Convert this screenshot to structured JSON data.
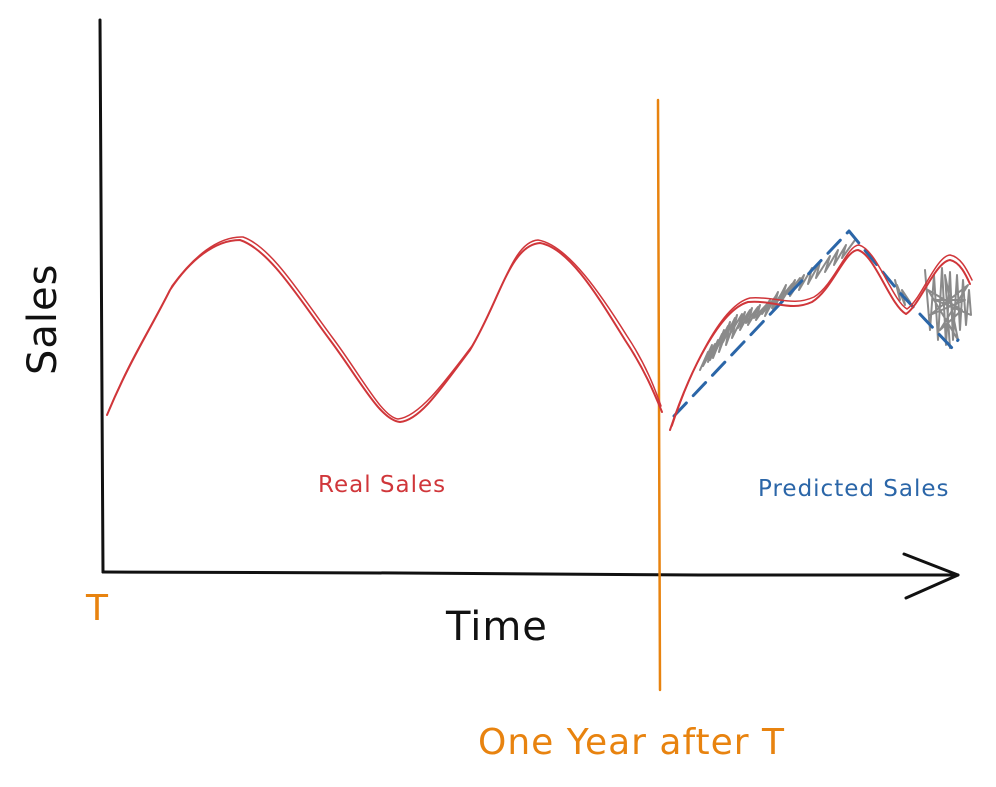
{
  "labels": {
    "y_axis": "Sales",
    "x_axis": "Time",
    "origin": "T",
    "marker": "One Year after T",
    "real_series": "Real Sales",
    "predicted_series": "Predicted Sales"
  },
  "colors": {
    "axes": "#111111",
    "real": "#d0363a",
    "predicted": "#2b66a8",
    "marker": "#e8830f",
    "noise": "#8a8a8a"
  }
}
